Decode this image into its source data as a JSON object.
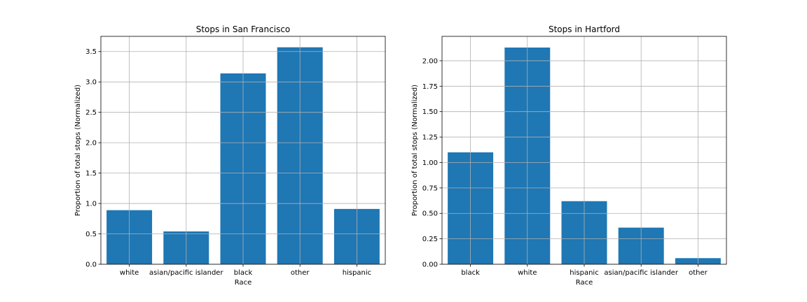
{
  "bar_color": "#1f77b4",
  "grid_color": "#b0b0b0",
  "chart_data": [
    {
      "type": "bar",
      "title": "Stops in San Francisco",
      "xlabel": "Race",
      "ylabel": "Proportion of total stops (Normalized)",
      "categories": [
        "white",
        "asian/pacific islander",
        "black",
        "other",
        "hispanic"
      ],
      "values": [
        0.89,
        0.54,
        3.14,
        3.57,
        0.91
      ],
      "ylim": [
        0,
        3.75
      ],
      "yticks": [
        0.0,
        0.5,
        1.0,
        1.5,
        2.0,
        2.5,
        3.0,
        3.5
      ],
      "ytick_labels": [
        "0.0",
        "0.5",
        "1.0",
        "1.5",
        "2.0",
        "2.5",
        "3.0",
        "3.5"
      ],
      "grid": true
    },
    {
      "type": "bar",
      "title": "Stops in Hartford",
      "xlabel": "Race",
      "ylabel": "Proportion of total stops (Normalized)",
      "categories": [
        "black",
        "white",
        "hispanic",
        "asian/pacific islander",
        "other"
      ],
      "values": [
        1.1,
        2.13,
        0.62,
        0.36,
        0.06
      ],
      "ylim": [
        0,
        2.24
      ],
      "yticks": [
        0.0,
        0.25,
        0.5,
        0.75,
        1.0,
        1.25,
        1.5,
        1.75,
        2.0
      ],
      "ytick_labels": [
        "0.00",
        "0.25",
        "0.50",
        "0.75",
        "1.00",
        "1.25",
        "1.50",
        "1.75",
        "2.00"
      ],
      "grid": true
    }
  ]
}
